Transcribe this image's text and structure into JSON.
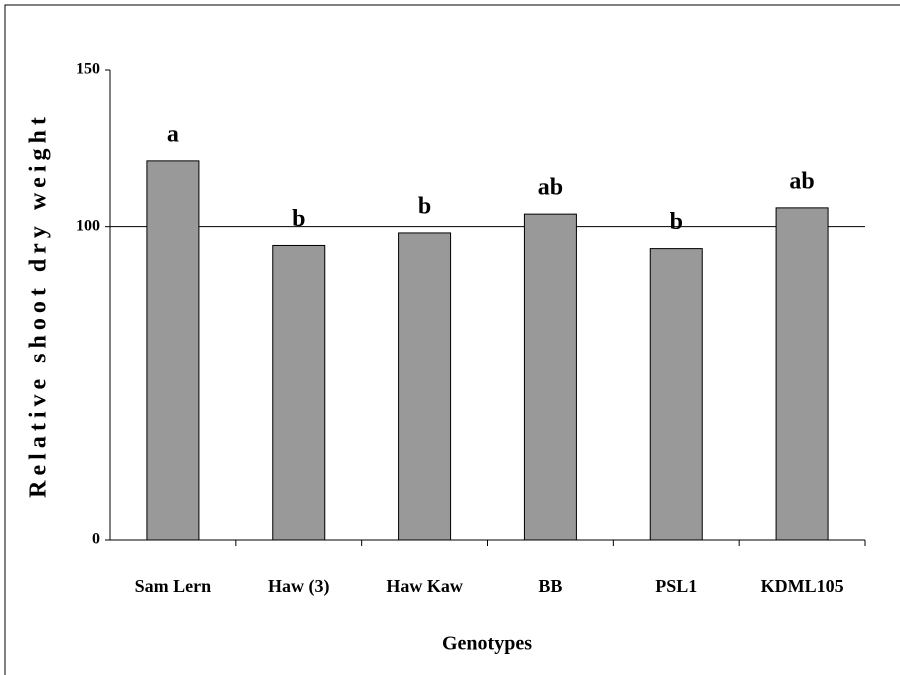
{
  "chart_data": {
    "type": "bar",
    "y_label": "Relative shoot dry weight",
    "x_label": "Genotypes",
    "categories": [
      "Sam Lern",
      "Haw (3)",
      "Haw Kaw",
      "BB",
      "PSL1",
      "KDML105"
    ],
    "values": [
      121,
      94,
      98,
      104,
      93,
      106
    ],
    "annotations": [
      "a",
      "b",
      "b",
      "ab",
      "b",
      "ab"
    ],
    "color": "#999999",
    "ylim": [
      0,
      150
    ],
    "yticks": [
      0,
      100,
      150
    ],
    "grid": true
  }
}
